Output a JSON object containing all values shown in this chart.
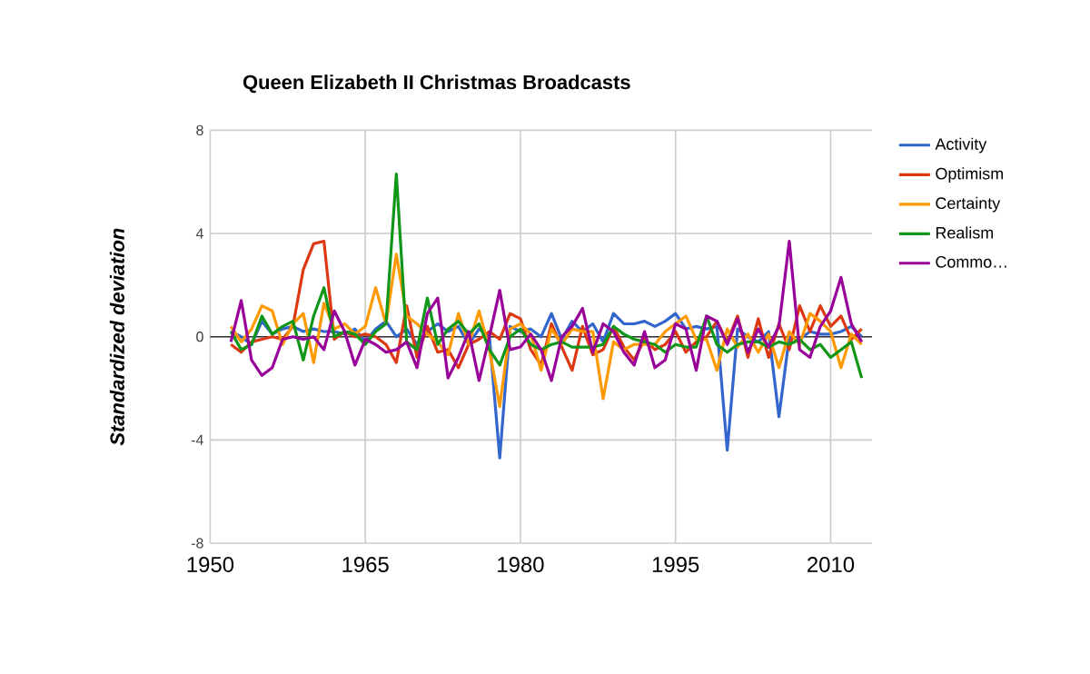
{
  "chart_data": {
    "type": "line",
    "title": "Queen Elizabeth II Christmas Broadcasts",
    "ylabel": "Standardized deviation",
    "x": [
      1952,
      1953,
      1954,
      1955,
      1956,
      1957,
      1958,
      1959,
      1960,
      1961,
      1962,
      1963,
      1964,
      1965,
      1966,
      1967,
      1968,
      1969,
      1970,
      1971,
      1972,
      1973,
      1974,
      1975,
      1976,
      1977,
      1978,
      1979,
      1980,
      1981,
      1982,
      1983,
      1984,
      1985,
      1986,
      1987,
      1988,
      1989,
      1990,
      1991,
      1992,
      1993,
      1994,
      1995,
      1996,
      1997,
      1998,
      1999,
      2000,
      2001,
      2002,
      2003,
      2004,
      2005,
      2006,
      2007,
      2008,
      2009,
      2010,
      2011,
      2012,
      2013
    ],
    "series": [
      {
        "name": "Activity",
        "color": "#3366cc",
        "values": [
          0.2,
          0.0,
          -0.3,
          0.6,
          0.1,
          0.3,
          0.4,
          0.2,
          0.3,
          0.2,
          0.2,
          0.1,
          0.3,
          -0.2,
          0.3,
          0.6,
          0.0,
          0.3,
          -0.3,
          0.2,
          0.5,
          0.2,
          0.4,
          -0.3,
          0.3,
          0.0,
          -4.7,
          0.4,
          0.2,
          0.3,
          0.0,
          0.9,
          -0.1,
          0.6,
          0.2,
          0.5,
          -0.2,
          0.9,
          0.5,
          0.5,
          0.6,
          0.4,
          0.6,
          0.9,
          0.3,
          0.4,
          0.3,
          0.4,
          -4.4,
          0.3,
          0.0,
          -0.2,
          0.2,
          -3.1,
          0.0,
          -0.1,
          0.2,
          0.1,
          0.1,
          0.2,
          0.4,
          0.0
        ]
      },
      {
        "name": "Optimism",
        "color": "#dc3912",
        "values": [
          -0.3,
          -0.6,
          -0.2,
          -0.1,
          0.0,
          -0.1,
          0.4,
          2.6,
          3.6,
          3.7,
          -0.1,
          0.2,
          0.0,
          0.1,
          0.0,
          -0.3,
          -1.0,
          1.2,
          -0.8,
          0.4,
          -0.6,
          -0.5,
          -1.2,
          -0.3,
          -0.1,
          0.2,
          -0.1,
          0.9,
          0.7,
          -0.5,
          -1.1,
          0.5,
          -0.4,
          -1.3,
          0.4,
          -0.7,
          -0.5,
          0.4,
          -0.4,
          -0.9,
          -0.1,
          -0.5,
          -0.3,
          0.2,
          -0.6,
          -0.2,
          0.0,
          0.6,
          -0.2,
          0.8,
          -0.8,
          0.7,
          -0.8,
          0.5,
          -0.5,
          1.2,
          0.2,
          1.2,
          0.4,
          0.8,
          -0.1,
          0.3
        ]
      },
      {
        "name": "Certainty",
        "color": "#ff9900",
        "values": [
          0.4,
          -0.2,
          0.3,
          1.2,
          1.0,
          -0.3,
          0.5,
          0.9,
          -1.0,
          1.3,
          0.3,
          0.5,
          0.1,
          0.4,
          1.9,
          0.5,
          3.2,
          0.8,
          0.5,
          0.1,
          -0.2,
          -0.7,
          0.9,
          -0.3,
          1.0,
          -0.5,
          -2.7,
          0.3,
          0.5,
          0.1,
          -1.3,
          0.3,
          -0.3,
          0.3,
          0.2,
          0.2,
          -2.4,
          -0.2,
          -0.5,
          -0.3,
          -0.3,
          -0.3,
          0.2,
          0.5,
          0.8,
          -0.1,
          -0.1,
          -1.3,
          0.3,
          -0.4,
          0.1,
          -0.6,
          0.1,
          -1.2,
          0.2,
          -0.3,
          0.9,
          0.6,
          0.2,
          -1.2,
          0.1,
          -0.3
        ]
      },
      {
        "name": "Realism",
        "color": "#109618",
        "values": [
          0.2,
          -0.5,
          -0.3,
          0.8,
          0.1,
          0.4,
          0.6,
          -0.9,
          0.8,
          1.9,
          0.0,
          0.2,
          0.1,
          -0.3,
          0.2,
          0.5,
          6.3,
          -0.2,
          -0.5,
          1.5,
          -0.3,
          0.3,
          0.6,
          0.1,
          0.5,
          -0.5,
          -1.1,
          0.0,
          0.3,
          -0.3,
          -0.5,
          -0.3,
          -0.2,
          -0.4,
          -0.4,
          -0.4,
          -0.3,
          0.4,
          0.1,
          -0.1,
          -0.2,
          -0.3,
          -0.6,
          -0.3,
          -0.4,
          -0.4,
          0.8,
          -0.3,
          -0.6,
          -0.3,
          -0.2,
          -0.2,
          -0.4,
          -0.2,
          -0.3,
          -0.1,
          -0.5,
          -0.3,
          -0.8,
          -0.5,
          -0.2,
          -1.6
        ]
      },
      {
        "name": "Commo…",
        "color": "#990099",
        "values": [
          -0.2,
          1.4,
          -0.9,
          -1.5,
          -1.2,
          -0.1,
          0.0,
          -0.1,
          0.0,
          -0.5,
          1.0,
          0.2,
          -1.1,
          -0.1,
          -0.3,
          -0.6,
          -0.5,
          -0.2,
          -1.2,
          0.9,
          1.5,
          -1.6,
          -0.8,
          0.2,
          -1.7,
          0.0,
          1.8,
          -0.5,
          -0.4,
          0.1,
          -0.5,
          -1.7,
          0.0,
          0.4,
          1.1,
          -0.6,
          0.5,
          0.2,
          -0.6,
          -1.1,
          0.2,
          -1.2,
          -0.9,
          0.5,
          0.3,
          -1.3,
          0.8,
          0.6,
          -0.3,
          0.7,
          -0.6,
          0.3,
          -0.4,
          0.4,
          3.7,
          -0.5,
          -0.8,
          0.4,
          1.0,
          2.3,
          0.5,
          -0.2
        ]
      }
    ],
    "xlim": [
      1950,
      2014
    ],
    "xticks": [
      1950,
      1965,
      1980,
      1995,
      2010
    ],
    "ylim": [
      -8,
      8
    ],
    "yticks": [
      -8,
      -4,
      0,
      4,
      8
    ],
    "ref_lines": [
      {
        "axis": "y",
        "value": 0,
        "color": "#333333"
      }
    ],
    "grid": true,
    "legend": "right",
    "marker": "none",
    "line_style": "solid"
  }
}
